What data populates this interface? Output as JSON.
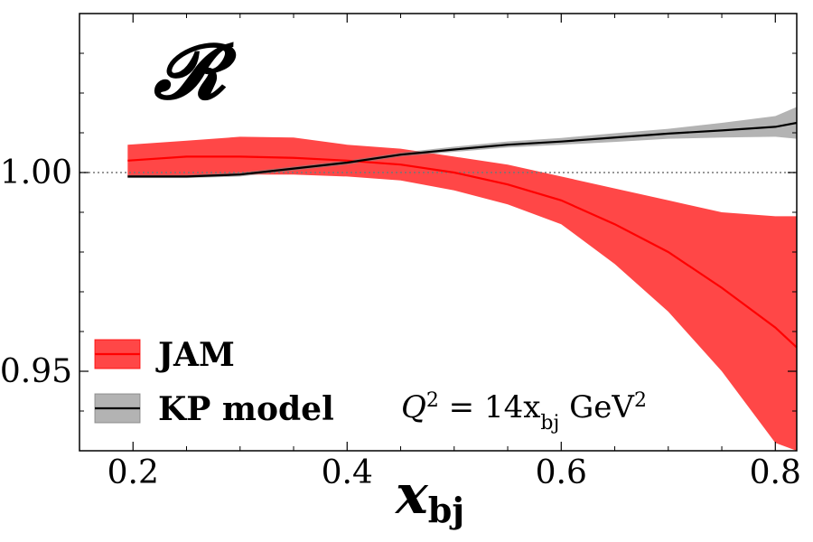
{
  "chart_data": {
    "type": "line",
    "title": "𝓡",
    "xlabel": "x",
    "xlabel_sub": "bj",
    "ylabel": "",
    "xlim": [
      0.15,
      0.82
    ],
    "ylim": [
      0.93,
      1.04
    ],
    "xticks": [
      0.2,
      0.4,
      0.6,
      0.8
    ],
    "xtick_labels": [
      "0.2",
      "0.4",
      "0.6",
      "0.8"
    ],
    "yticks": [
      0.95,
      1.0
    ],
    "ytick_labels": [
      "0.95",
      "1.00"
    ],
    "reference_line": 1.0,
    "grid": false,
    "legend_position": "lower-left",
    "annotation": {
      "prefix": "Q",
      "sup": "2",
      "mid": " = 14x",
      "sub": "bj",
      "unit": " GeV",
      "unit_sup": "2"
    },
    "series": [
      {
        "name": "JAM",
        "color": "#ff0000",
        "band_color": "#ff0000",
        "x": [
          0.195,
          0.25,
          0.3,
          0.35,
          0.4,
          0.45,
          0.5,
          0.55,
          0.6,
          0.65,
          0.7,
          0.75,
          0.8,
          0.82
        ],
        "y": [
          1.003,
          1.004,
          1.004,
          1.0037,
          1.003,
          1.002,
          1.0,
          0.997,
          0.993,
          0.987,
          0.98,
          0.971,
          0.961,
          0.956
        ],
        "lower": [
          0.999,
          0.999,
          0.9995,
          0.9995,
          0.999,
          0.998,
          0.9955,
          0.992,
          0.987,
          0.977,
          0.965,
          0.95,
          0.932,
          0.93
        ],
        "upper": [
          1.007,
          1.008,
          1.009,
          1.0088,
          1.007,
          1.006,
          1.004,
          1.002,
          0.999,
          0.996,
          0.993,
          0.99,
          0.989,
          0.989
        ]
      },
      {
        "name": "KP model",
        "color": "#000000",
        "band_color": "#808080",
        "x": [
          0.195,
          0.25,
          0.3,
          0.35,
          0.4,
          0.45,
          0.5,
          0.55,
          0.6,
          0.65,
          0.7,
          0.75,
          0.8,
          0.82
        ],
        "y": [
          0.999,
          0.999,
          0.9995,
          1.001,
          1.0025,
          1.0045,
          1.0058,
          1.007,
          1.0078,
          1.0088,
          1.0098,
          1.0106,
          1.0115,
          1.0125
        ],
        "lower": [
          0.9986,
          0.9986,
          0.999,
          1.0005,
          1.002,
          1.004,
          1.0052,
          1.0063,
          1.007,
          1.0077,
          1.0085,
          1.0088,
          1.009,
          1.0085
        ],
        "upper": [
          0.9994,
          0.9994,
          1.0,
          1.0015,
          1.003,
          1.005,
          1.0065,
          1.0078,
          1.0087,
          1.0099,
          1.011,
          1.0125,
          1.0142,
          1.0165
        ]
      }
    ]
  }
}
